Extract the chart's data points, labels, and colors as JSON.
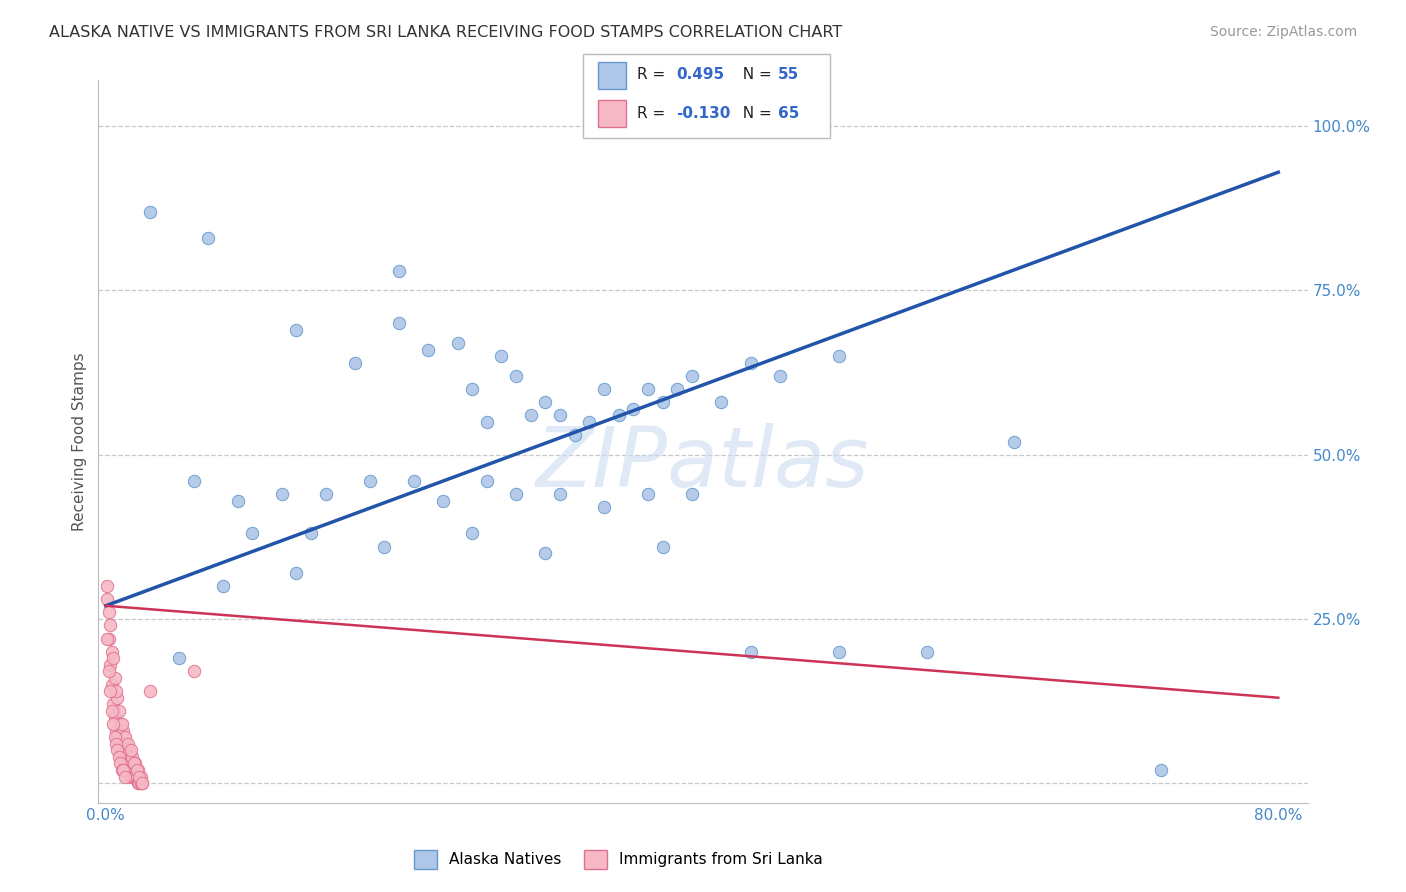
{
  "title": "ALASKA NATIVE VS IMMIGRANTS FROM SRI LANKA RECEIVING FOOD STAMPS CORRELATION CHART",
  "source": "Source: ZipAtlas.com",
  "ylabel": "Receiving Food Stamps",
  "background_color": "#ffffff",
  "legend_label_alaska": "Alaska Natives",
  "legend_label_srilanka": "Immigrants from Sri Lanka",
  "watermark_text": "ZIPatlas",
  "xlim": [
    -0.005,
    0.82
  ],
  "ylim": [
    -0.03,
    1.07
  ],
  "alaska_color": "#aec6e8",
  "alaska_edge_color": "#6699cc",
  "srilanka_color": "#f5b8c4",
  "srilanka_edge_color": "#e07090",
  "trendline_alaska_color": "#2255aa",
  "trendline_srilanka_color": "#cc3355",
  "grid_color": "#c8c8c8",
  "title_color": "#333333",
  "tick_color": "#4488cc",
  "marker_size": 80,
  "alaska_x": [
    0.03,
    0.07,
    0.13,
    0.17,
    0.2,
    0.22,
    0.24,
    0.25,
    0.26,
    0.27,
    0.28,
    0.29,
    0.3,
    0.31,
    0.32,
    0.33,
    0.34,
    0.35,
    0.36,
    0.37,
    0.38,
    0.39,
    0.4,
    0.42,
    0.44,
    0.46,
    0.5,
    0.06,
    0.09,
    0.12,
    0.15,
    0.18,
    0.21,
    0.23,
    0.26,
    0.28,
    0.31,
    0.34,
    0.37,
    0.4,
    0.1,
    0.14,
    0.19,
    0.25,
    0.3,
    0.38,
    0.44,
    0.5,
    0.56,
    0.62,
    0.72,
    0.2,
    0.08,
    0.13,
    0.05
  ],
  "alaska_y": [
    0.87,
    0.83,
    0.69,
    0.64,
    0.7,
    0.66,
    0.67,
    0.6,
    0.55,
    0.65,
    0.62,
    0.56,
    0.58,
    0.56,
    0.53,
    0.55,
    0.6,
    0.56,
    0.57,
    0.6,
    0.58,
    0.6,
    0.62,
    0.58,
    0.64,
    0.62,
    0.65,
    0.46,
    0.43,
    0.44,
    0.44,
    0.46,
    0.46,
    0.43,
    0.46,
    0.44,
    0.44,
    0.42,
    0.44,
    0.44,
    0.38,
    0.38,
    0.36,
    0.38,
    0.35,
    0.36,
    0.2,
    0.2,
    0.2,
    0.52,
    0.02,
    0.78,
    0.3,
    0.32,
    0.19
  ],
  "srilanka_x": [
    0.001,
    0.002,
    0.003,
    0.004,
    0.005,
    0.006,
    0.007,
    0.008,
    0.009,
    0.01,
    0.011,
    0.012,
    0.013,
    0.014,
    0.015,
    0.016,
    0.017,
    0.018,
    0.019,
    0.02,
    0.021,
    0.022,
    0.023,
    0.024,
    0.025,
    0.002,
    0.004,
    0.006,
    0.008,
    0.01,
    0.012,
    0.014,
    0.016,
    0.018,
    0.02,
    0.022,
    0.024,
    0.001,
    0.003,
    0.005,
    0.007,
    0.009,
    0.011,
    0.013,
    0.015,
    0.017,
    0.019,
    0.021,
    0.023,
    0.025,
    0.001,
    0.002,
    0.003,
    0.004,
    0.005,
    0.006,
    0.007,
    0.008,
    0.009,
    0.01,
    0.011,
    0.012,
    0.013,
    0.03,
    0.06
  ],
  "srilanka_y": [
    0.28,
    0.22,
    0.18,
    0.15,
    0.12,
    0.1,
    0.08,
    0.07,
    0.06,
    0.05,
    0.04,
    0.04,
    0.03,
    0.03,
    0.02,
    0.02,
    0.01,
    0.01,
    0.01,
    0.01,
    0.01,
    0.0,
    0.0,
    0.0,
    0.0,
    0.26,
    0.2,
    0.16,
    0.13,
    0.09,
    0.08,
    0.06,
    0.05,
    0.04,
    0.03,
    0.02,
    0.01,
    0.3,
    0.24,
    0.19,
    0.14,
    0.11,
    0.09,
    0.07,
    0.06,
    0.05,
    0.03,
    0.02,
    0.01,
    0.0,
    0.22,
    0.17,
    0.14,
    0.11,
    0.09,
    0.07,
    0.06,
    0.05,
    0.04,
    0.03,
    0.02,
    0.02,
    0.01,
    0.14,
    0.17
  ],
  "trendline_alaska_x0": 0.0,
  "trendline_alaska_y0": 0.27,
  "trendline_alaska_x1": 0.8,
  "trendline_alaska_y1": 0.93,
  "trendline_srilanka_x0": 0.0,
  "trendline_srilanka_y0": 0.27,
  "trendline_srilanka_x1": 0.8,
  "trendline_srilanka_y1": 0.13
}
